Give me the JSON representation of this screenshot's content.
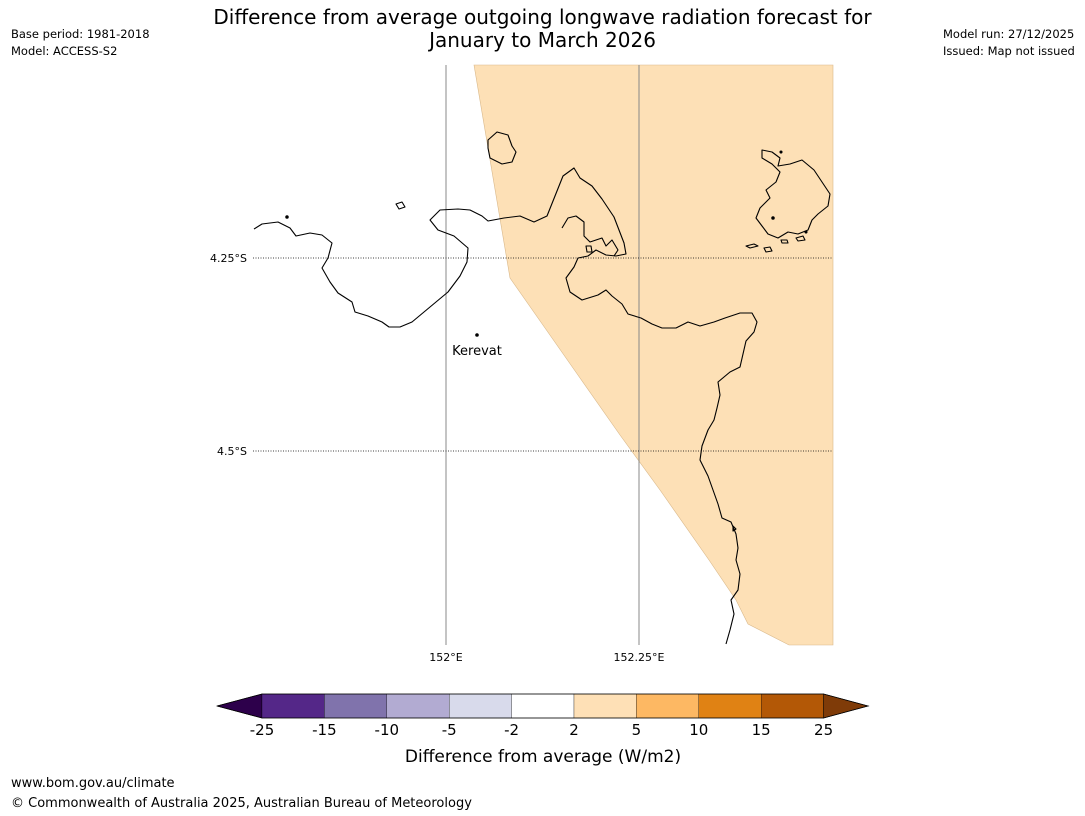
{
  "header": {
    "title_line1": "Difference from average outgoing longwave radiation forecast for",
    "title_line2": "January to March 2026",
    "base_period": "Base period: 1981-2018",
    "model": "Model: ACCESS-S2",
    "model_run": "Model run: 27/12/2025",
    "issued": "Issued: Map not issued"
  },
  "map": {
    "lat_labels": [
      "4.25°S",
      "4.5°S"
    ],
    "lon_labels": [
      "152°E",
      "152.25°E"
    ],
    "place_label": "Kerevat",
    "forecast_fill_color": "#fde0b6"
  },
  "colorbar": {
    "label": "Difference from average (W/m2)",
    "ticks": [
      "-25",
      "-15",
      "-10",
      "-5",
      "-2",
      "2",
      "5",
      "10",
      "15",
      "25"
    ],
    "colors": [
      "#2d004b",
      "#542788",
      "#8073ac",
      "#b2abd2",
      "#d8daeb",
      "#ffffff",
      "#fee0b6",
      "#fdb863",
      "#e08214",
      "#b35806",
      "#7f3b08"
    ]
  },
  "footer": {
    "url": "www.bom.gov.au/climate",
    "copyright": "© Commonwealth of Australia 2025, Australian Bureau of Meteorology"
  }
}
